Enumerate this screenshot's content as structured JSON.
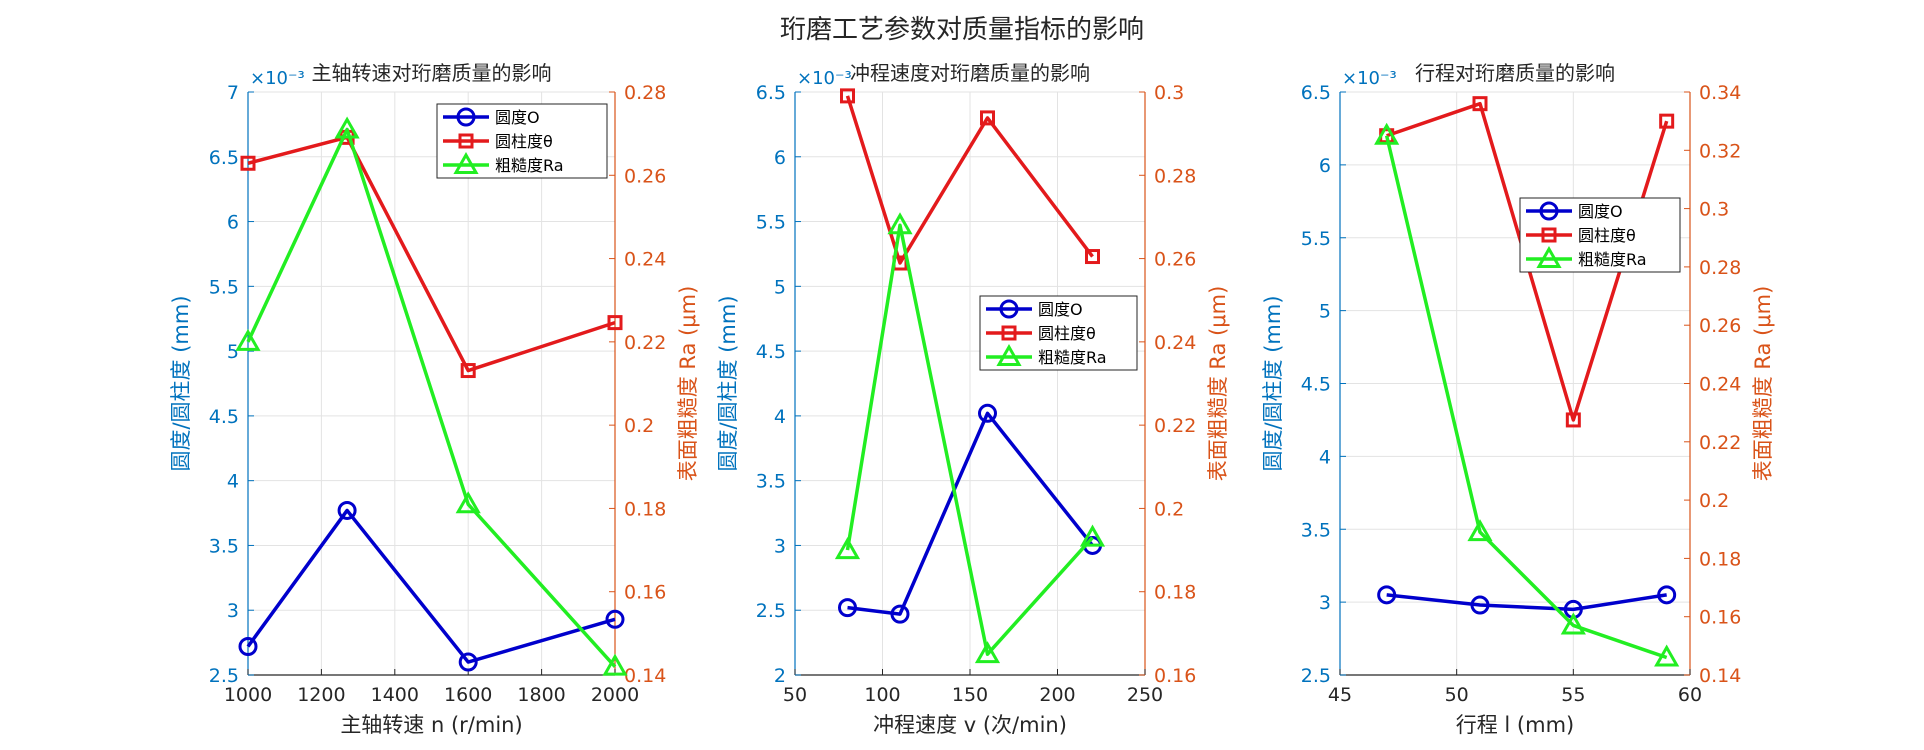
{
  "figure_title": "珩磨工艺参数对质量指标的影响",
  "colors": {
    "roundness": "#0000CC",
    "cylindricity": "#E31A1C",
    "roughness": "#22EE22",
    "left_axis": "#0072BD",
    "right_axis": "#D95319"
  },
  "legend_labels": [
    "圆度O",
    "圆柱度θ",
    "粗糙度Ra"
  ],
  "chart_data": [
    {
      "type": "line",
      "title": "主轴转速对珩磨质量的影响",
      "xlabel": "主轴转速 n (r/min)",
      "ylabel_left": "圆度/圆柱度 (mm)",
      "ylabel_right": "表面粗糙度 Ra (μm)",
      "y_exponent": "×10⁻³",
      "xlim": [
        1000,
        2000
      ],
      "xticks": [
        1000,
        1200,
        1400,
        1600,
        1800,
        2000
      ],
      "ylim_left": [
        2.5,
        7
      ],
      "yticks_left": [
        2.5,
        3,
        3.5,
        4,
        4.5,
        5,
        5.5,
        6,
        6.5,
        7
      ],
      "ylim_right": [
        0.14,
        0.28
      ],
      "yticks_right": [
        0.14,
        0.16,
        0.18,
        0.2,
        0.22,
        0.24,
        0.26,
        0.28
      ],
      "legend_position": "top-right",
      "x": [
        1000,
        1270,
        1600,
        2000
      ],
      "series": [
        {
          "name": "圆度O",
          "axis": "left",
          "values": [
            2.72,
            3.77,
            2.6,
            2.93
          ]
        },
        {
          "name": "圆柱度θ",
          "axis": "left",
          "values": [
            6.45,
            6.65,
            4.85,
            5.22
          ]
        },
        {
          "name": "粗糙度Ra",
          "axis": "right",
          "values": [
            0.22,
            0.271,
            0.181,
            0.142
          ]
        }
      ]
    },
    {
      "type": "line",
      "title": "冲程速度对珩磨质量的影响",
      "xlabel": "冲程速度 v (次/min)",
      "ylabel_left": "圆度/圆柱度 (mm)",
      "ylabel_right": "表面粗糙度 Ra (μm)",
      "y_exponent": "×10⁻³",
      "xlim": [
        50,
        250
      ],
      "xticks": [
        50,
        100,
        150,
        200,
        250
      ],
      "ylim_left": [
        2,
        6.5
      ],
      "yticks_left": [
        2,
        2.5,
        3,
        3.5,
        4,
        4.5,
        5,
        5.5,
        6,
        6.5
      ],
      "ylim_right": [
        0.16,
        0.3
      ],
      "yticks_right": [
        0.16,
        0.18,
        0.2,
        0.22,
        0.24,
        0.26,
        0.28,
        0.3
      ],
      "legend_position": "middle-right",
      "x": [
        80,
        110,
        160,
        220
      ],
      "series": [
        {
          "name": "圆度O",
          "axis": "left",
          "values": [
            2.52,
            2.47,
            4.02,
            3.0
          ]
        },
        {
          "name": "圆柱度θ",
          "axis": "left",
          "values": [
            6.47,
            5.18,
            6.3,
            5.23
          ]
        },
        {
          "name": "粗糙度Ra",
          "axis": "right",
          "values": [
            0.19,
            0.268,
            0.165,
            0.193
          ]
        }
      ]
    },
    {
      "type": "line",
      "title": "行程对珩磨质量的影响",
      "xlabel": "行程 l (mm)",
      "ylabel_left": "圆度/圆柱度 (mm)",
      "ylabel_right": "表面粗糙度 Ra (μm)",
      "y_exponent": "×10⁻³",
      "xlim": [
        45,
        60
      ],
      "xticks": [
        45,
        50,
        55,
        60
      ],
      "ylim_left": [
        2.5,
        6.5
      ],
      "yticks_left": [
        2.5,
        3,
        3.5,
        4,
        4.5,
        5,
        5.5,
        6,
        6.5
      ],
      "ylim_right": [
        0.14,
        0.34
      ],
      "yticks_right": [
        0.14,
        0.16,
        0.18,
        0.2,
        0.22,
        0.24,
        0.26,
        0.28,
        0.3,
        0.32,
        0.34
      ],
      "legend_position": "top-right",
      "x": [
        47,
        51,
        55,
        59
      ],
      "series": [
        {
          "name": "圆度O",
          "axis": "left",
          "values": [
            3.05,
            2.98,
            2.95,
            3.05
          ]
        },
        {
          "name": "圆柱度θ",
          "axis": "left",
          "values": [
            6.2,
            6.42,
            4.25,
            6.3
          ]
        },
        {
          "name": "粗糙度Ra",
          "axis": "right",
          "values": [
            0.325,
            0.189,
            0.157,
            0.146
          ]
        }
      ]
    }
  ]
}
